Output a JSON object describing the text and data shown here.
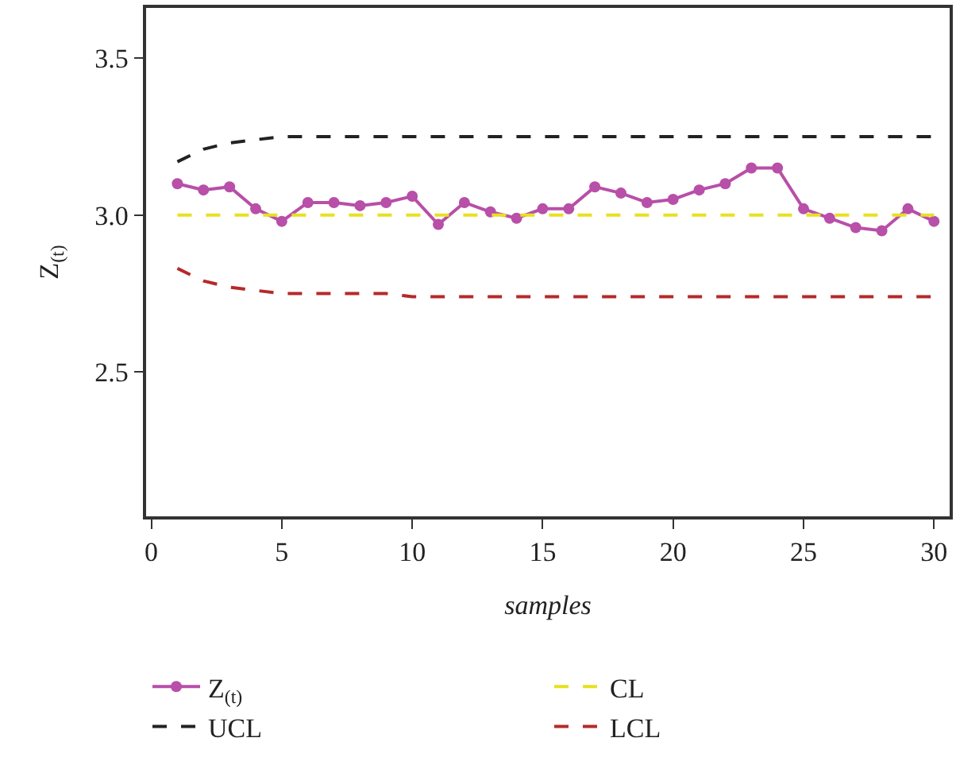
{
  "chart_data": {
    "type": "line",
    "xlabel": "samples",
    "ylabel": "Z$_{(t)}$",
    "x": [
      1,
      2,
      3,
      4,
      5,
      6,
      7,
      8,
      9,
      10,
      11,
      12,
      13,
      14,
      15,
      16,
      17,
      18,
      19,
      20,
      21,
      22,
      23,
      24,
      25,
      26,
      27,
      28,
      29,
      30
    ],
    "series": [
      {
        "name": "Z$_{(t)}$",
        "color": "#b84fa8",
        "marker": "circle",
        "line_style": "solid",
        "values": [
          3.1,
          3.08,
          3.09,
          3.02,
          2.98,
          3.04,
          3.04,
          3.03,
          3.04,
          3.06,
          2.97,
          3.04,
          3.01,
          2.99,
          3.02,
          3.02,
          3.09,
          3.07,
          3.04,
          3.05,
          3.08,
          3.1,
          3.15,
          3.15,
          3.02,
          2.99,
          2.96,
          2.95,
          3.02,
          2.98
        ]
      },
      {
        "name": "CL",
        "color": "#e8e020",
        "marker": "none",
        "line_style": "dashed",
        "values": [
          3.0,
          3.0,
          3.0,
          3.0,
          3.0,
          3.0,
          3.0,
          3.0,
          3.0,
          3.0,
          3.0,
          3.0,
          3.0,
          3.0,
          3.0,
          3.0,
          3.0,
          3.0,
          3.0,
          3.0,
          3.0,
          3.0,
          3.0,
          3.0,
          3.0,
          3.0,
          3.0,
          3.0,
          3.0,
          3.0
        ]
      },
      {
        "name": "UCL",
        "color": "#222222",
        "marker": "none",
        "line_style": "dashed",
        "values": [
          3.17,
          3.21,
          3.23,
          3.24,
          3.25,
          3.25,
          3.25,
          3.25,
          3.25,
          3.25,
          3.25,
          3.25,
          3.25,
          3.25,
          3.25,
          3.25,
          3.25,
          3.25,
          3.25,
          3.25,
          3.25,
          3.25,
          3.25,
          3.25,
          3.25,
          3.25,
          3.25,
          3.25,
          3.25,
          3.25
        ]
      },
      {
        "name": "LCL",
        "color": "#b52a2a",
        "marker": "none",
        "line_style": "dashed",
        "values": [
          2.83,
          2.79,
          2.77,
          2.76,
          2.75,
          2.75,
          2.75,
          2.75,
          2.75,
          2.74,
          2.74,
          2.74,
          2.74,
          2.74,
          2.74,
          2.74,
          2.74,
          2.74,
          2.74,
          2.74,
          2.74,
          2.74,
          2.74,
          2.74,
          2.74,
          2.74,
          2.74,
          2.74,
          2.74,
          2.74
        ]
      }
    ],
    "xlim": [
      -0.2,
      30.6
    ],
    "xticks": [
      0,
      5,
      10,
      15,
      20,
      25,
      30
    ],
    "ylim": [
      2.04,
      3.66
    ],
    "yticks": [
      {
        "value": 2.5,
        "label": "2.5"
      },
      {
        "value": 3.0,
        "label": "3.0"
      },
      {
        "value": 3.5,
        "label": "3.5"
      }
    ],
    "grid": false,
    "legend": "bottom"
  }
}
